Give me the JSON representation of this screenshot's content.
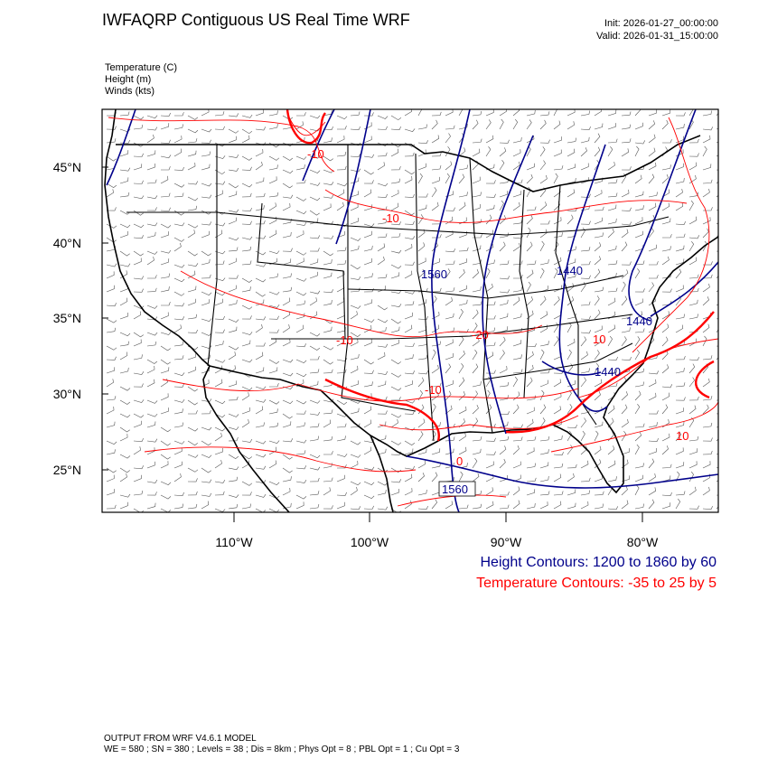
{
  "header": {
    "title": "IWFAQRP Contiguous US Real Time WRF",
    "init": "Init: 2026-01-27_00:00:00",
    "valid": "Valid: 2026-01-31_15:00:00",
    "fields": [
      "Temperature   (C)",
      "Height   (m)",
      "Winds   (kts)"
    ]
  },
  "axes": {
    "lat_labels": [
      "45°N",
      "40°N",
      "35°N",
      "30°N",
      "25°N"
    ],
    "lon_labels": [
      "110°W",
      "100°W",
      "90°W",
      "80°W"
    ]
  },
  "contour_labels": {
    "height": [
      "1560",
      "1440",
      "1440",
      "1440",
      "1560"
    ],
    "temperature": [
      "-10",
      "-10",
      "-20",
      "-10",
      "0",
      "10",
      "-10",
      "10"
    ]
  },
  "legend": {
    "height": "Height Contours: 1200 to 1860 by 60",
    "temperature": "Temperature Contours: -35 to 25 by 5"
  },
  "colors": {
    "height": "#00008b",
    "temperature": "#ff0000",
    "boundaries": "#000000"
  },
  "footer": {
    "line1": "OUTPUT FROM WRF V4.6.1 MODEL",
    "line2": "WE = 580 ; SN = 380 ; Levels = 38 ; Dis = 8km ; Phys Opt = 8 ; PBL Opt = 1 ; Cu Opt = 3"
  }
}
